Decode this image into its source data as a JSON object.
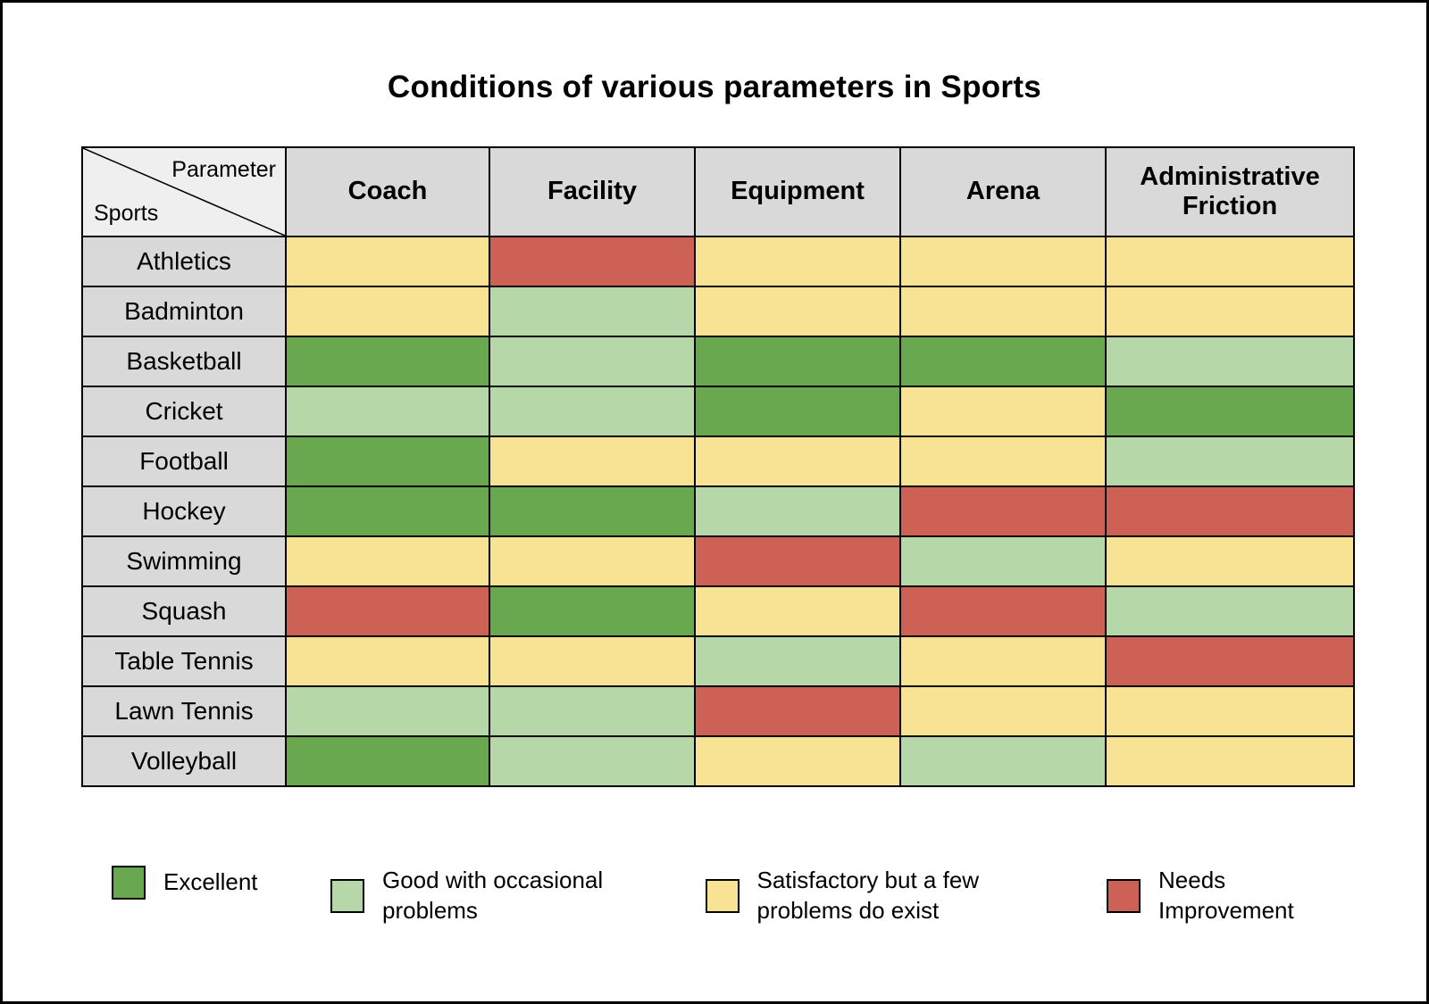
{
  "title": "Conditions of various parameters in Sports",
  "corner": {
    "parameter": "Parameter",
    "sports": "Sports"
  },
  "colors": {
    "excellent": "#6aa84f",
    "good": "#b6d7a8",
    "satisfactory": "#f8e294",
    "needs": "#cd6155",
    "header_bg": "#d9d9d9",
    "corner_bg": "#efefef",
    "border": "#000000"
  },
  "legend": [
    {
      "key": "excellent",
      "label": "Excellent"
    },
    {
      "key": "good",
      "label": "Good with occasional problems"
    },
    {
      "key": "satisfactory",
      "label": "Satisfactory but a few problems do exist"
    },
    {
      "key": "needs",
      "label": "Needs Improvement"
    }
  ],
  "chart_data": {
    "type": "heatmap",
    "title": "Conditions of various parameters in Sports",
    "x": [
      "Coach",
      "Facility",
      "Equipment",
      "Arena",
      "Administrative Friction"
    ],
    "y": [
      "Athletics",
      "Badminton",
      "Basketball",
      "Cricket",
      "Football",
      "Hockey",
      "Swimming",
      "Squash",
      "Table Tennis",
      "Lawn Tennis",
      "Volleyball"
    ],
    "values": [
      [
        "satisfactory",
        "needs",
        "satisfactory",
        "satisfactory",
        "satisfactory"
      ],
      [
        "satisfactory",
        "good",
        "satisfactory",
        "satisfactory",
        "satisfactory"
      ],
      [
        "excellent",
        "good",
        "excellent",
        "excellent",
        "good"
      ],
      [
        "good",
        "good",
        "excellent",
        "satisfactory",
        "excellent"
      ],
      [
        "excellent",
        "satisfactory",
        "satisfactory",
        "satisfactory",
        "good"
      ],
      [
        "excellent",
        "excellent",
        "good",
        "needs",
        "needs"
      ],
      [
        "satisfactory",
        "satisfactory",
        "needs",
        "good",
        "satisfactory"
      ],
      [
        "needs",
        "excellent",
        "satisfactory",
        "needs",
        "good"
      ],
      [
        "satisfactory",
        "satisfactory",
        "good",
        "satisfactory",
        "needs"
      ],
      [
        "good",
        "good",
        "needs",
        "satisfactory",
        "satisfactory"
      ],
      [
        "excellent",
        "good",
        "satisfactory",
        "good",
        "satisfactory"
      ]
    ],
    "value_labels": {
      "excellent": "Excellent",
      "good": "Good with occasional problems",
      "satisfactory": "Satisfactory but a few problems do exist",
      "needs": "Needs Improvement"
    },
    "legend_position": "bottom"
  }
}
